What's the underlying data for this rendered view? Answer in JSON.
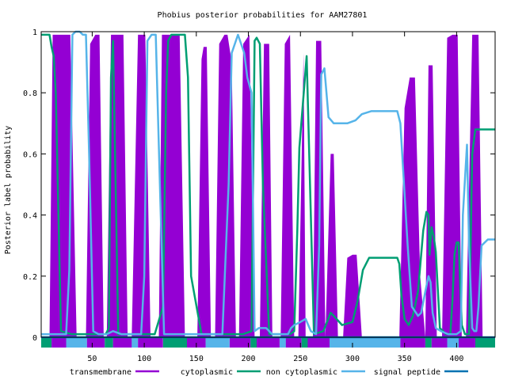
{
  "chart_data": {
    "type": "line",
    "title": "Phobius posterior probabilities for AAM27801",
    "xlabel": "",
    "ylabel": "Posterior label probability",
    "xlim": [
      1,
      437
    ],
    "ylim": [
      0,
      1
    ],
    "x_ticks": [
      50,
      100,
      150,
      200,
      250,
      300,
      350,
      400
    ],
    "y_ticks": [
      0,
      0.2,
      0.4,
      0.6,
      0.8,
      1
    ],
    "y_tick_labels": [
      "0",
      "0.2",
      "0.4",
      "0.6",
      "0.8",
      "1"
    ],
    "grid": false,
    "legend_position": "bottom",
    "colors": {
      "transmembrane": "#9400d3",
      "cytoplasmic": "#009e73",
      "non_cytoplasmic": "#56b4e9",
      "signal_peptide": "#0072b2"
    },
    "series": [
      {
        "name": "transmembrane",
        "style": "filled-area",
        "x": [
          1,
          9,
          12,
          17,
          24,
          29,
          35,
          41,
          44,
          48,
          53,
          57,
          61,
          64,
          68,
          72,
          76,
          80,
          84,
          88,
          94,
          97,
          101,
          106,
          111,
          114,
          117,
          121,
          127,
          134,
          139,
          141,
          151,
          155,
          157,
          160,
          164,
          168,
          172,
          177,
          180,
          184,
          188,
          191,
          195,
          201,
          206,
          211,
          215,
          220,
          223,
          227,
          231,
          235,
          240,
          244,
          248,
          253,
          255,
          258,
          262,
          265,
          270,
          274,
          279,
          282,
          286,
          291,
          295,
          300,
          304,
          309,
          315,
          320,
          326,
          332,
          336,
          341,
          345,
          350,
          355,
          360,
          365,
          370,
          373,
          377,
          381,
          386,
          391,
          396,
          401,
          405,
          409,
          415,
          421,
          425,
          430,
          437
        ],
        "y": [
          0,
          0,
          0.99,
          0.99,
          0.99,
          0.99,
          0,
          0,
          0,
          0.96,
          0.99,
          0.99,
          0,
          0,
          0.99,
          0.99,
          0.99,
          0.99,
          0,
          0,
          0.99,
          0.99,
          0.99,
          0,
          0,
          0,
          0.99,
          0.99,
          0.99,
          0.99,
          0,
          0,
          0,
          0.91,
          0.95,
          0.95,
          0,
          0,
          0.96,
          0.99,
          0.99,
          0.9,
          0,
          0,
          0.96,
          0.99,
          0,
          0,
          0.96,
          0.96,
          0,
          0,
          0,
          0.96,
          0.99,
          0,
          0,
          0.93,
          0,
          0,
          0,
          0.97,
          0.97,
          0,
          0.6,
          0.6,
          0,
          0,
          0.26,
          0.27,
          0.27,
          0,
          0,
          0,
          0,
          0,
          0,
          0,
          0,
          0.75,
          0.85,
          0.85,
          0.2,
          0,
          0.89,
          0.89,
          0,
          0,
          0.98,
          0.99,
          0.99,
          0,
          0,
          0.99,
          0.99,
          0,
          0,
          0
        ]
      },
      {
        "name": "cytoplasmic",
        "x": [
          1,
          5,
          9,
          11,
          13,
          15,
          20,
          30,
          40,
          55,
          63,
          66,
          68,
          70,
          75,
          80,
          85,
          95,
          110,
          118,
          121,
          123,
          126,
          130,
          135,
          139,
          142,
          145,
          155,
          175,
          195,
          203,
          206,
          208,
          211,
          214,
          220,
          232,
          237,
          240,
          244,
          247,
          249,
          252,
          256,
          263,
          272,
          279,
          282,
          290,
          300,
          305,
          310,
          316,
          320,
          330,
          343,
          345,
          347,
          350,
          354,
          358,
          363,
          368,
          371,
          373,
          374,
          376,
          378,
          380,
          384,
          390,
          394,
          396,
          398,
          400,
          402,
          405,
          408,
          412,
          415,
          418,
          425,
          437
        ],
        "y": [
          0.99,
          0.99,
          0.99,
          0.95,
          0.92,
          0.8,
          0.02,
          0.01,
          0.01,
          0.01,
          0.01,
          0.03,
          0.85,
          0.97,
          0.01,
          0.01,
          0.01,
          0.01,
          0.01,
          0.1,
          0.8,
          0.97,
          0.99,
          0.99,
          0.99,
          0.99,
          0.85,
          0.2,
          0.01,
          0.01,
          0.01,
          0.02,
          0.97,
          0.98,
          0.96,
          0.5,
          0.01,
          0.01,
          0.01,
          0.01,
          0.02,
          0.35,
          0.62,
          0.75,
          0.92,
          0.01,
          0.02,
          0.08,
          0.07,
          0.04,
          0.05,
          0.12,
          0.22,
          0.26,
          0.26,
          0.26,
          0.26,
          0.24,
          0.14,
          0.06,
          0.04,
          0.07,
          0.15,
          0.35,
          0.41,
          0.4,
          0.27,
          0.36,
          0.33,
          0.28,
          0.03,
          0.01,
          0.01,
          0.12,
          0.27,
          0.31,
          0.31,
          0.04,
          0.01,
          0.01,
          0.6,
          0.68,
          0.68,
          0.68
        ]
      },
      {
        "name": "non cytoplasmic",
        "x": [
          1,
          10,
          16,
          25,
          28,
          31,
          34,
          38,
          41,
          44,
          47,
          51,
          56,
          64,
          70,
          78,
          90,
          97,
          100,
          103,
          107,
          111,
          119,
          123,
          131,
          134,
          137,
          140,
          143,
          147,
          155,
          165,
          175,
          181,
          184,
          190,
          196,
          199,
          203,
          206,
          210,
          214,
          217,
          220,
          223,
          226,
          229,
          234,
          238,
          241,
          244,
          250,
          255,
          260,
          265,
          268,
          270,
          273,
          277,
          282,
          289,
          295,
          303,
          309,
          318,
          330,
          343,
          346,
          353,
          357,
          361,
          363,
          366,
          370,
          373,
          375,
          377,
          380,
          385,
          392,
          400,
          404,
          406,
          410,
          412,
          415,
          417,
          419,
          421,
          424,
          430,
          437
        ],
        "y": [
          0.01,
          0.01,
          0.01,
          0.01,
          0.22,
          0.99,
          1.0,
          1.0,
          0.99,
          0.99,
          0.6,
          0.02,
          0.01,
          0.01,
          0.02,
          0.01,
          0.01,
          0.01,
          0.2,
          0.97,
          0.99,
          0.99,
          0.01,
          0.01,
          0.01,
          0.01,
          0.01,
          0.01,
          0.01,
          0.01,
          0.01,
          0.01,
          0.01,
          0.5,
          0.93,
          0.99,
          0.93,
          0.85,
          0.8,
          0.02,
          0.03,
          0.03,
          0.03,
          0.02,
          0.01,
          0.01,
          0.01,
          0.01,
          0.01,
          0.03,
          0.04,
          0.05,
          0.06,
          0.02,
          0.01,
          0.3,
          0.86,
          0.88,
          0.72,
          0.7,
          0.7,
          0.7,
          0.71,
          0.73,
          0.74,
          0.74,
          0.74,
          0.7,
          0.3,
          0.1,
          0.08,
          0.07,
          0.08,
          0.15,
          0.2,
          0.18,
          0.08,
          0.03,
          0.02,
          0.01,
          0.01,
          0.02,
          0.4,
          0.63,
          0.3,
          0.03,
          0.02,
          0.02,
          0.1,
          0.3,
          0.32,
          0.32
        ]
      },
      {
        "name": "signal peptide",
        "x": [
          1,
          437
        ],
        "y": [
          0.0,
          0.0
        ]
      }
    ],
    "topology_bar": {
      "segments": [
        {
          "label": "cytoplasmic",
          "from": 1,
          "to": 11
        },
        {
          "label": "transmembrane",
          "from": 11,
          "to": 25
        },
        {
          "label": "non cytoplasmic",
          "from": 25,
          "to": 45
        },
        {
          "label": "transmembrane",
          "from": 45,
          "to": 62
        },
        {
          "label": "cytoplasmic",
          "from": 62,
          "to": 70
        },
        {
          "label": "transmembrane",
          "from": 70,
          "to": 88
        },
        {
          "label": "non cytoplasmic",
          "from": 88,
          "to": 94
        },
        {
          "label": "transmembrane",
          "from": 94,
          "to": 118
        },
        {
          "label": "cytoplasmic",
          "from": 118,
          "to": 141
        },
        {
          "label": "transmembrane",
          "from": 141,
          "to": 159
        },
        {
          "label": "non cytoplasmic",
          "from": 159,
          "to": 182
        },
        {
          "label": "transmembrane",
          "from": 182,
          "to": 202
        },
        {
          "label": "cytoplasmic",
          "from": 202,
          "to": 208
        },
        {
          "label": "transmembrane",
          "from": 208,
          "to": 230
        },
        {
          "label": "non cytoplasmic",
          "from": 230,
          "to": 236
        },
        {
          "label": "transmembrane",
          "from": 236,
          "to": 251
        },
        {
          "label": "cytoplasmic",
          "from": 251,
          "to": 257
        },
        {
          "label": "transmembrane",
          "from": 257,
          "to": 278
        },
        {
          "label": "non cytoplasmic",
          "from": 278,
          "to": 346
        },
        {
          "label": "transmembrane",
          "from": 346,
          "to": 370
        },
        {
          "label": "cytoplasmic",
          "from": 370,
          "to": 376
        },
        {
          "label": "transmembrane",
          "from": 376,
          "to": 391
        },
        {
          "label": "non cytoplasmic",
          "from": 391,
          "to": 402
        },
        {
          "label": "transmembrane",
          "from": 402,
          "to": 418
        },
        {
          "label": "cytoplasmic",
          "from": 418,
          "to": 437
        }
      ]
    },
    "legend": [
      {
        "label": "transmembrane",
        "key": "transmembrane"
      },
      {
        "label": "cytoplasmic",
        "key": "cytoplasmic"
      },
      {
        "label": "non cytoplasmic",
        "key": "non_cytoplasmic"
      },
      {
        "label": "signal peptide",
        "key": "signal_peptide"
      }
    ]
  }
}
